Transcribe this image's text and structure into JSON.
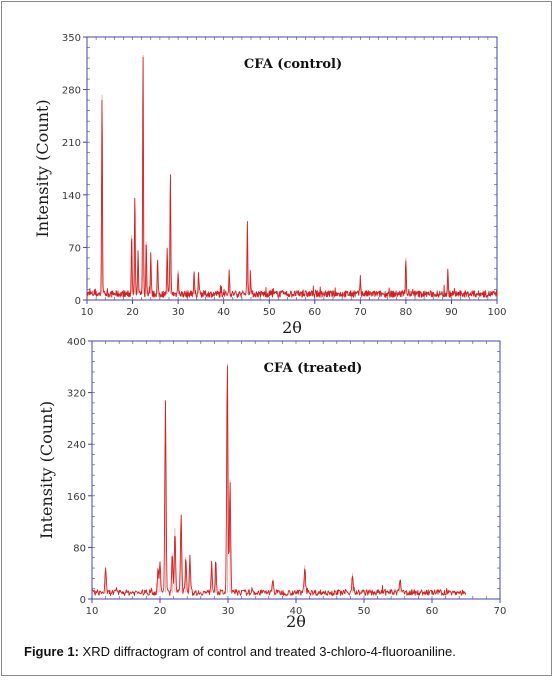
{
  "caption": {
    "label": "Figure 1:",
    "text": " XRD diffractogram of control and treated 3-chloro-4-fluoroaniline."
  },
  "chart_data": [
    {
      "type": "line",
      "title": "CFA (control)",
      "xlabel": "2θ",
      "ylabel": "Intensity (Count)",
      "xlim": [
        10,
        100
      ],
      "ylim": [
        0,
        350
      ],
      "xticks": [
        10,
        20,
        30,
        40,
        50,
        60,
        70,
        80,
        90,
        100
      ],
      "yticks": [
        0,
        70,
        140,
        210,
        280,
        350
      ],
      "baseline": 8,
      "color": "#d42020",
      "peaks": [
        [
          13.3,
          265
        ],
        [
          19.8,
          78
        ],
        [
          20.5,
          128
        ],
        [
          21.2,
          55
        ],
        [
          22.3,
          318
        ],
        [
          23.0,
          70
        ],
        [
          24.0,
          55
        ],
        [
          25.5,
          45
        ],
        [
          27.6,
          58
        ],
        [
          28.3,
          160
        ],
        [
          30.0,
          32
        ],
        [
          33.5,
          30
        ],
        [
          34.5,
          28
        ],
        [
          41.2,
          30
        ],
        [
          45.2,
          95
        ],
        [
          45.9,
          25
        ],
        [
          70.0,
          22
        ],
        [
          80.0,
          48
        ],
        [
          89.2,
          30
        ]
      ]
    },
    {
      "type": "line",
      "title": "CFA (treated)",
      "xlabel": "2θ",
      "ylabel": "Intensity (Count)",
      "xlim": [
        10,
        70
      ],
      "ylim": [
        0,
        400
      ],
      "xticks": [
        10,
        20,
        30,
        40,
        50,
        60,
        70
      ],
      "yticks": [
        0,
        80,
        160,
        240,
        320,
        400
      ],
      "baseline": 10,
      "data_end": 65,
      "color": "#d42020",
      "peaks": [
        [
          12.0,
          35
        ],
        [
          19.7,
          35
        ],
        [
          20.0,
          45
        ],
        [
          20.8,
          295
        ],
        [
          21.8,
          60
        ],
        [
          22.2,
          100
        ],
        [
          23.1,
          120
        ],
        [
          23.8,
          55
        ],
        [
          24.4,
          58
        ],
        [
          27.6,
          45
        ],
        [
          28.2,
          40
        ],
        [
          29.9,
          355
        ],
        [
          30.3,
          175
        ],
        [
          36.6,
          22
        ],
        [
          41.3,
          42
        ],
        [
          48.3,
          30
        ],
        [
          55.3,
          20
        ]
      ]
    }
  ]
}
